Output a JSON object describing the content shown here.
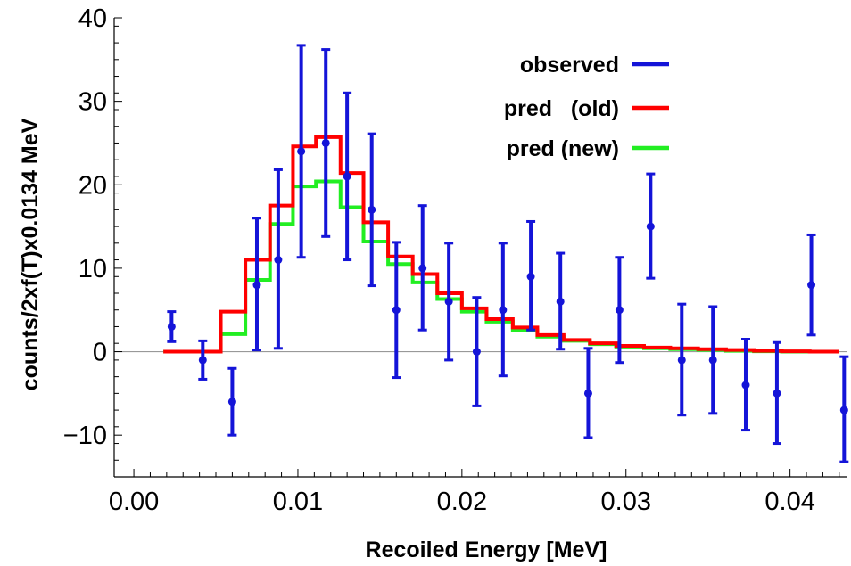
{
  "chart_data": {
    "type": "scatter",
    "title": "",
    "xlabel": "Recoiled Energy [MeV]",
    "ylabel": "counts/2xf(T)x0.0134 MeV",
    "xlim": [
      -0.0012,
      0.0435
    ],
    "ylim": [
      -15,
      40
    ],
    "x_ticks": [
      {
        "value": 0.0,
        "label": "0.00"
      },
      {
        "value": 0.01,
        "label": "0.01"
      },
      {
        "value": 0.02,
        "label": "0.02"
      },
      {
        "value": 0.03,
        "label": "0.03"
      },
      {
        "value": 0.04,
        "label": "0.04"
      }
    ],
    "y_ticks": [
      {
        "value": -10,
        "label": "−10"
      },
      {
        "value": 0,
        "label": "0"
      },
      {
        "value": 10,
        "label": "10"
      },
      {
        "value": 20,
        "label": "20"
      },
      {
        "value": 30,
        "label": "30"
      },
      {
        "value": 40,
        "label": "40"
      }
    ],
    "grid": false,
    "zero_line": true,
    "legend_position": "top-right",
    "colors": {
      "observed": "#1414d8",
      "pred_old": "#ff0000",
      "pred_new": "#22ee22",
      "axis": "#000000",
      "zero_line": "#999999"
    },
    "series": [
      {
        "name": "observed",
        "kind": "points_with_errorbars",
        "points": [
          {
            "x": 0.0023,
            "y": 3,
            "lo": 1.2,
            "hi": 4.8
          },
          {
            "x": 0.0042,
            "y": -1,
            "lo": -3.3,
            "hi": 1.3
          },
          {
            "x": 0.006,
            "y": -6,
            "lo": -10.0,
            "hi": -2.0
          },
          {
            "x": 0.0075,
            "y": 8,
            "lo": 0.2,
            "hi": 16.0
          },
          {
            "x": 0.0088,
            "y": 11,
            "lo": 0.4,
            "hi": 21.8
          },
          {
            "x": 0.0102,
            "y": 24,
            "lo": 11.3,
            "hi": 36.7
          },
          {
            "x": 0.0117,
            "y": 25,
            "lo": 13.8,
            "hi": 36.2
          },
          {
            "x": 0.013,
            "y": 21,
            "lo": 11.0,
            "hi": 31.0
          },
          {
            "x": 0.0145,
            "y": 17,
            "lo": 7.9,
            "hi": 26.1
          },
          {
            "x": 0.016,
            "y": 5,
            "lo": -3.1,
            "hi": 13.1
          },
          {
            "x": 0.0176,
            "y": 10,
            "lo": 2.6,
            "hi": 17.5
          },
          {
            "x": 0.0192,
            "y": 6,
            "lo": -1.0,
            "hi": 13.0
          },
          {
            "x": 0.0209,
            "y": 0,
            "lo": -6.5,
            "hi": 6.5
          },
          {
            "x": 0.0225,
            "y": 5,
            "lo": -2.9,
            "hi": 13.0
          },
          {
            "x": 0.0242,
            "y": 9,
            "lo": 2.6,
            "hi": 15.6
          },
          {
            "x": 0.026,
            "y": 6,
            "lo": 0.3,
            "hi": 11.8
          },
          {
            "x": 0.0277,
            "y": -5,
            "lo": -10.3,
            "hi": 0.4
          },
          {
            "x": 0.0296,
            "y": 5,
            "lo": -1.3,
            "hi": 11.3
          },
          {
            "x": 0.0315,
            "y": 15,
            "lo": 8.8,
            "hi": 21.3
          },
          {
            "x": 0.0334,
            "y": -1,
            "lo": -7.6,
            "hi": 5.7
          },
          {
            "x": 0.0353,
            "y": -1,
            "lo": -7.4,
            "hi": 5.4
          },
          {
            "x": 0.0373,
            "y": -4,
            "lo": -9.4,
            "hi": 1.5
          },
          {
            "x": 0.0392,
            "y": -5,
            "lo": -11.0,
            "hi": 1.1
          },
          {
            "x": 0.0413,
            "y": 8,
            "lo": 2.0,
            "hi": 14.0
          },
          {
            "x": 0.0433,
            "y": -7,
            "lo": -13.2,
            "hi": -0.6
          }
        ]
      },
      {
        "name": "pred   (old)",
        "kind": "step",
        "x": [
          0.0018,
          0.0053,
          0.0068,
          0.0083,
          0.0097,
          0.0111,
          0.0126,
          0.014,
          0.0155,
          0.017,
          0.0185,
          0.02,
          0.0215,
          0.0231,
          0.0246,
          0.0262,
          0.0278,
          0.0294,
          0.0311,
          0.0327,
          0.0344,
          0.0361,
          0.0378,
          0.0395,
          0.0412,
          0.043
        ],
        "y": [
          0,
          4.8,
          11.0,
          17.5,
          24.6,
          25.7,
          21.4,
          15.5,
          11.4,
          9.3,
          7.0,
          5.2,
          3.9,
          2.9,
          2.0,
          1.4,
          1.0,
          0.7,
          0.5,
          0.4,
          0.3,
          0.2,
          0.1,
          0.05,
          0.0,
          0.0
        ]
      },
      {
        "name": "pred (new)",
        "kind": "step",
        "x": [
          0.0018,
          0.0053,
          0.0068,
          0.0083,
          0.0097,
          0.0111,
          0.0126,
          0.014,
          0.0155,
          0.017,
          0.0185,
          0.02,
          0.0215,
          0.0231,
          0.0246,
          0.0262,
          0.0278,
          0.0294,
          0.0311,
          0.0327,
          0.0344,
          0.0361,
          0.0378,
          0.0395,
          0.0412,
          0.043
        ],
        "y": [
          0,
          2.1,
          8.6,
          15.3,
          19.8,
          20.4,
          17.3,
          13.2,
          10.5,
          8.3,
          6.3,
          4.8,
          3.6,
          2.6,
          1.8,
          1.3,
          0.9,
          0.6,
          0.4,
          0.3,
          0.2,
          0.1,
          0.05,
          0.0,
          0.0,
          0.0
        ]
      }
    ],
    "legend": [
      {
        "label": "observed",
        "color": "#1414d8"
      },
      {
        "label": "pred   (old)",
        "color": "#ff0000"
      },
      {
        "label": "pred (new)",
        "color": "#22ee22"
      }
    ]
  }
}
